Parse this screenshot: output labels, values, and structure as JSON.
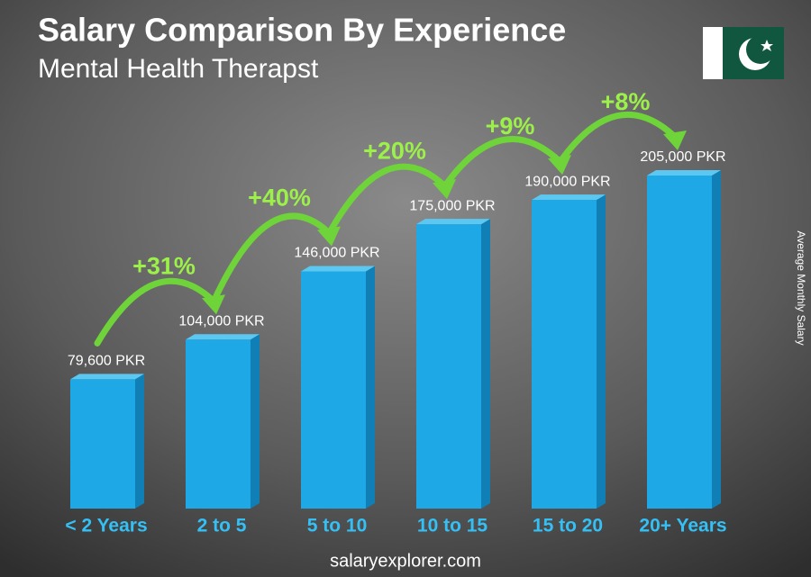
{
  "chart_data": {
    "type": "bar3d",
    "title": "Salary Comparison By Experience",
    "subtitle": "Mental Health Therapst",
    "y_label": "Average Monthly Salary",
    "categories": [
      "< 2 Years",
      "2 to 5",
      "5 to 10",
      "10 to 15",
      "15 to 20",
      "20+ Years"
    ],
    "values": [
      79600,
      104000,
      146000,
      175000,
      190000,
      205000
    ],
    "value_labels": [
      "79,600 PKR",
      "104,000 PKR",
      "146,000 PKR",
      "175,000 PKR",
      "190,000 PKR",
      "205,000 PKR"
    ],
    "growth_labels": [
      "+31%",
      "+40%",
      "+20%",
      "+9%",
      "+8%"
    ],
    "color": "#1fa8e6",
    "source": "salaryexplorer.com"
  }
}
